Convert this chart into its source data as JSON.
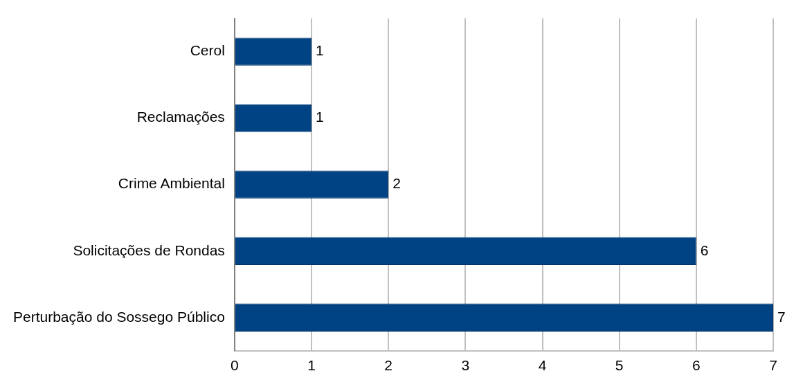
{
  "chart_data": {
    "type": "bar",
    "orientation": "horizontal",
    "categories": [
      "Cerol",
      "Reclamações",
      "Crime Ambiental",
      "Solicitações de Rondas",
      "Perturbação do Sossego Público"
    ],
    "values": [
      1,
      1,
      2,
      6,
      7
    ],
    "color": "#004385",
    "xlim": [
      0,
      7
    ],
    "xticks": [
      0,
      1,
      2,
      3,
      4,
      5,
      6,
      7
    ],
    "grid": "x",
    "data_labels": true,
    "legend": false
  }
}
